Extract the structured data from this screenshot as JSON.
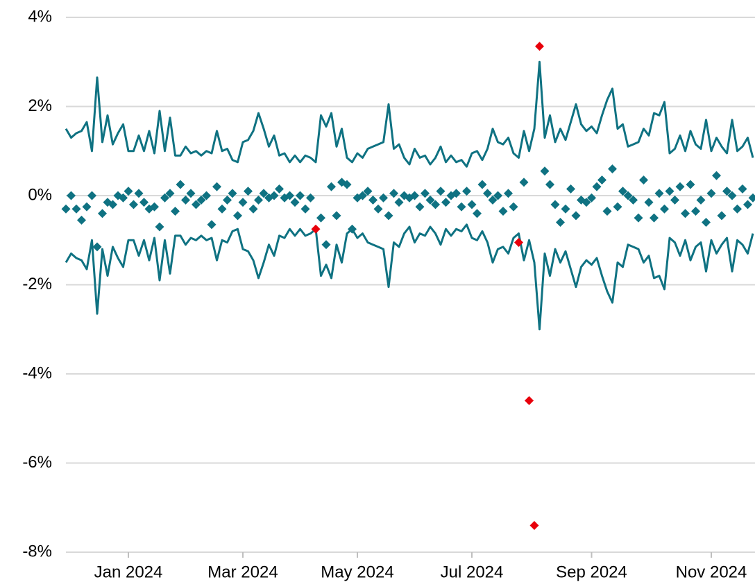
{
  "chart_data": {
    "type": "line",
    "categories": [
      null,
      null,
      null,
      null,
      null,
      null,
      null,
      null,
      null,
      null,
      null,
      null,
      "Jan 2024",
      null,
      null,
      null,
      null,
      null,
      null,
      null,
      null,
      null,
      null,
      null,
      null,
      null,
      null,
      null,
      null,
      null,
      null,
      null,
      null,
      null,
      "Mar 2024",
      null,
      null,
      null,
      null,
      null,
      null,
      null,
      null,
      null,
      null,
      null,
      null,
      null,
      null,
      null,
      null,
      null,
      null,
      null,
      null,
      null,
      "May 2024",
      null,
      null,
      null,
      null,
      null,
      null,
      null,
      null,
      null,
      null,
      null,
      null,
      null,
      null,
      null,
      null,
      null,
      null,
      null,
      null,
      null,
      "Jul 2024",
      null,
      null,
      null,
      null,
      null,
      null,
      null,
      null,
      null,
      null,
      null,
      null,
      null,
      null,
      null,
      null,
      null,
      null,
      null,
      null,
      null,
      null,
      "Sep 2024",
      null,
      null,
      null,
      null,
      null,
      null,
      null,
      null,
      null,
      null,
      null,
      null,
      null,
      null,
      null,
      null,
      null,
      null,
      null,
      null,
      null,
      null,
      "Nov 2024",
      null,
      null,
      null,
      null,
      null,
      null,
      null,
      null
    ],
    "ylim": [
      -8,
      4
    ],
    "yticks": [
      {
        "value": -8,
        "label": "-8%"
      },
      {
        "value": -6,
        "label": "-6%"
      },
      {
        "value": -4,
        "label": "-4%"
      },
      {
        "value": -2,
        "label": "-2%"
      },
      {
        "value": 0,
        "label": "0%"
      },
      {
        "value": 2,
        "label": "2%"
      },
      {
        "value": 4,
        "label": "4%"
      }
    ],
    "grid": true,
    "series": [
      {
        "style": "line",
        "color": "#0f7282",
        "values": [
          1.5,
          1.3,
          1.4,
          1.45,
          1.65,
          1.0,
          2.65,
          1.2,
          1.8,
          1.15,
          1.4,
          1.6,
          1.0,
          1.0,
          1.35,
          1.0,
          1.45,
          0.95,
          1.9,
          1.0,
          1.75,
          0.9,
          0.9,
          1.1,
          0.95,
          1.0,
          0.9,
          1.0,
          0.95,
          1.45,
          1.0,
          1.05,
          0.8,
          0.75,
          1.2,
          1.25,
          1.45,
          1.85,
          1.5,
          1.1,
          1.35,
          0.9,
          0.95,
          0.75,
          0.9,
          0.75,
          0.9,
          0.85,
          0.75,
          1.8,
          1.55,
          1.85,
          1.1,
          1.5,
          0.85,
          0.75,
          0.95,
          0.85,
          1.05,
          1.1,
          1.15,
          1.2,
          2.05,
          1.05,
          1.15,
          0.85,
          0.7,
          1.05,
          0.85,
          0.9,
          0.7,
          0.85,
          1.1,
          0.75,
          0.9,
          0.75,
          0.8,
          0.65,
          0.95,
          1.0,
          0.8,
          1.05,
          1.5,
          1.2,
          1.15,
          1.3,
          0.95,
          0.85,
          1.45,
          1.0,
          1.5,
          3.0,
          1.3,
          1.8,
          1.2,
          1.5,
          1.25,
          1.65,
          2.05,
          1.6,
          1.45,
          1.55,
          1.4,
          1.8,
          2.15,
          2.4,
          1.5,
          1.6,
          1.1,
          1.15,
          1.2,
          1.5,
          1.35,
          1.85,
          1.8,
          2.1,
          0.95,
          1.05,
          1.35,
          1.0,
          1.45,
          1.15,
          1.05,
          1.7,
          1.0,
          1.3,
          1.1,
          0.95,
          1.7,
          1.0,
          1.1,
          1.3,
          0.85
        ]
      },
      {
        "style": "line",
        "color": "#0f7282",
        "values": [
          -1.5,
          -1.3,
          -1.4,
          -1.45,
          -1.65,
          -1.0,
          -2.65,
          -1.2,
          -1.8,
          -1.15,
          -1.4,
          -1.6,
          -1.0,
          -1.0,
          -1.35,
          -1.0,
          -1.45,
          -0.95,
          -1.9,
          -1.0,
          -1.75,
          -0.9,
          -0.9,
          -1.1,
          -0.95,
          -1.0,
          -0.9,
          -1.0,
          -0.95,
          -1.45,
          -1.0,
          -1.05,
          -0.8,
          -0.75,
          -1.2,
          -1.25,
          -1.45,
          -1.85,
          -1.5,
          -1.1,
          -1.35,
          -0.9,
          -0.95,
          -0.75,
          -0.9,
          -0.75,
          -0.9,
          -0.85,
          -0.75,
          -1.8,
          -1.55,
          -1.85,
          -1.1,
          -1.5,
          -0.85,
          -0.75,
          -0.95,
          -0.85,
          -1.05,
          -1.1,
          -1.15,
          -1.2,
          -2.05,
          -1.05,
          -1.15,
          -0.85,
          -0.7,
          -1.05,
          -0.85,
          -0.9,
          -0.7,
          -0.85,
          -1.1,
          -0.75,
          -0.9,
          -0.75,
          -0.8,
          -0.65,
          -0.95,
          -1.0,
          -0.8,
          -1.05,
          -1.5,
          -1.2,
          -1.15,
          -1.3,
          -0.95,
          -0.85,
          -1.45,
          -1.0,
          -1.5,
          -3.0,
          -1.3,
          -1.8,
          -1.2,
          -1.5,
          -1.25,
          -1.65,
          -2.05,
          -1.6,
          -1.45,
          -1.55,
          -1.4,
          -1.8,
          -2.15,
          -2.4,
          -1.5,
          -1.6,
          -1.1,
          -1.15,
          -1.2,
          -1.5,
          -1.35,
          -1.85,
          -1.8,
          -2.1,
          -0.95,
          -1.05,
          -1.35,
          -1.0,
          -1.45,
          -1.15,
          -1.05,
          -1.7,
          -1.0,
          -1.3,
          -1.1,
          -0.95,
          -1.7,
          -1.0,
          -1.1,
          -1.3,
          -0.85
        ]
      },
      {
        "style": "marker",
        "color": "#0f7282",
        "values": [
          -0.3,
          0.0,
          -0.3,
          -0.55,
          -0.25,
          0.0,
          -1.15,
          -0.4,
          -0.15,
          -0.2,
          0.0,
          -0.05,
          0.1,
          -0.2,
          0.05,
          -0.15,
          -0.3,
          -0.25,
          -0.7,
          -0.05,
          0.05,
          -0.35,
          0.25,
          -0.1,
          0.05,
          -0.2,
          -0.1,
          0.0,
          -0.65,
          0.2,
          -0.3,
          -0.1,
          0.05,
          -0.45,
          -0.15,
          0.1,
          -0.3,
          -0.1,
          0.05,
          -0.05,
          0.0,
          0.15,
          -0.05,
          0.0,
          -0.15,
          0.0,
          -0.3,
          -0.05,
          null,
          -0.5,
          -1.1,
          0.2,
          -0.45,
          0.3,
          0.25,
          -0.75,
          -0.05,
          0.0,
          0.1,
          -0.1,
          -0.3,
          -0.05,
          -0.45,
          0.05,
          -0.15,
          0.0,
          -0.05,
          0.0,
          -0.25,
          0.05,
          -0.1,
          -0.2,
          0.1,
          -0.15,
          0.0,
          0.05,
          -0.25,
          0.1,
          -0.2,
          -0.4,
          0.25,
          0.05,
          -0.1,
          0.0,
          -0.35,
          0.05,
          -0.25,
          null,
          0.3,
          null,
          null,
          null,
          0.55,
          0.25,
          -0.2,
          -0.6,
          -0.3,
          0.15,
          -0.45,
          -0.1,
          -0.15,
          -0.05,
          0.2,
          0.35,
          -0.35,
          0.6,
          -0.25,
          0.1,
          0.0,
          -0.1,
          -0.5,
          0.35,
          -0.15,
          -0.5,
          0.05,
          -0.3,
          0.1,
          -0.1,
          0.2,
          -0.4,
          0.25,
          -0.35,
          -0.1,
          -0.6,
          0.05,
          0.45,
          -0.45,
          0.1,
          0.0,
          -0.3,
          0.15,
          -0.2,
          -0.05
        ]
      },
      {
        "style": "marker",
        "color": "#e8000b",
        "values": [
          null,
          null,
          null,
          null,
          null,
          null,
          null,
          null,
          null,
          null,
          null,
          null,
          null,
          null,
          null,
          null,
          null,
          null,
          null,
          null,
          null,
          null,
          null,
          null,
          null,
          null,
          null,
          null,
          null,
          null,
          null,
          null,
          null,
          null,
          null,
          null,
          null,
          null,
          null,
          null,
          null,
          null,
          null,
          null,
          null,
          null,
          null,
          null,
          -0.75,
          null,
          null,
          null,
          null,
          null,
          null,
          null,
          null,
          null,
          null,
          null,
          null,
          null,
          null,
          null,
          null,
          null,
          null,
          null,
          null,
          null,
          null,
          null,
          null,
          null,
          null,
          null,
          null,
          null,
          null,
          null,
          null,
          null,
          null,
          null,
          null,
          null,
          null,
          -1.05,
          null,
          -4.6,
          -7.4,
          3.35,
          null,
          null,
          null,
          null,
          null,
          null,
          null,
          null,
          null,
          null,
          null,
          null,
          null,
          null,
          null,
          null,
          null,
          null,
          null,
          null,
          null,
          null,
          null,
          null,
          null,
          null,
          null,
          null,
          null,
          null,
          null,
          null,
          null,
          null,
          null,
          null,
          null,
          null,
          null,
          null,
          null
        ]
      }
    ]
  }
}
